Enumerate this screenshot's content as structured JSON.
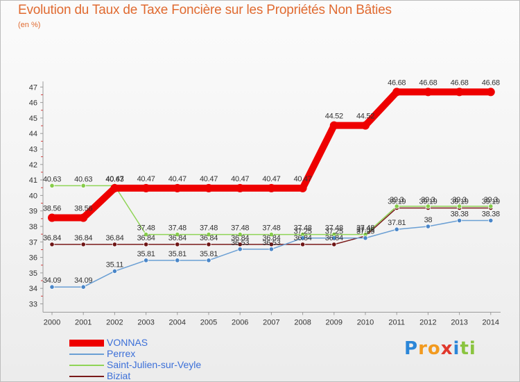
{
  "title": "Evolution du Taux de Taxe Foncière sur les Propriétés Non Bâties",
  "unit": "(en %)",
  "logo": {
    "letters": [
      "P",
      "r",
      "o",
      "x",
      "i",
      "t",
      "i"
    ],
    "colors": [
      "#2b86d8",
      "#f29a1f",
      "#f29a1f",
      "#e0382c",
      "#2b86d8",
      "#8ac43f",
      "#8ac43f"
    ]
  },
  "chart_data": {
    "type": "line",
    "title": "Evolution du Taux de Taxe Foncière sur les Propriétés Non Bâties",
    "ylabel": "(en %)",
    "xlabel": "",
    "x": [
      "2000",
      "2001",
      "2002",
      "2003",
      "2004",
      "2005",
      "2006",
      "2007",
      "2008",
      "2009",
      "2010",
      "2011",
      "2012",
      "2013",
      "2014"
    ],
    "ylim": [
      33,
      47
    ],
    "yticks": [
      "33",
      "34",
      "35",
      "36",
      "37",
      "38",
      "39",
      "40",
      "41",
      "42",
      "43",
      "44",
      "45",
      "46",
      "47"
    ],
    "grid": false,
    "legend": "bottom-left",
    "series": [
      {
        "name": "VONNAS",
        "color": "#ee0000",
        "emphasis": true,
        "values": [
          38.56,
          38.56,
          40.47,
          40.47,
          40.47,
          40.47,
          40.47,
          40.47,
          40.47,
          44.52,
          44.52,
          46.68,
          46.68,
          46.68,
          46.68
        ],
        "labels": [
          "38.56",
          "38.56",
          "40.47",
          "40.47",
          "40.47",
          "40.47",
          "40.47",
          "40.47",
          "40.47",
          "44.52",
          "44.52",
          "46.68",
          "46.68",
          "46.68",
          "46.68"
        ]
      },
      {
        "name": "Perrex",
        "color": "#6a9fd4",
        "marker": "#4a86c8",
        "values": [
          34.09,
          34.09,
          35.11,
          35.81,
          35.81,
          35.81,
          36.53,
          36.53,
          37.25,
          37.25,
          37.25,
          37.81,
          38.0,
          38.38,
          38.38
        ],
        "labels": [
          "34.09",
          "34.09",
          "35.11",
          "35.81",
          "35.81",
          "35.81",
          "36.53",
          "36.53",
          "37.25",
          "37.25",
          "37.25",
          "37.81",
          "38",
          "38.38",
          "38.38"
        ]
      },
      {
        "name": "Saint-Julien-sur-Veyle",
        "color": "#8fd456",
        "marker": "#86cc4a",
        "values": [
          40.63,
          40.63,
          40.63,
          37.48,
          37.48,
          37.48,
          37.48,
          37.48,
          37.48,
          37.48,
          37.48,
          39.3,
          39.3,
          39.3,
          39.3
        ],
        "labels": [
          "40.63",
          "40.63",
          "40.63",
          "37.48",
          "37.48",
          "37.48",
          "37.48",
          "37.48",
          "37.48",
          "37.48",
          "37.48",
          "39.3",
          "39.3",
          "39.3",
          "39.3"
        ]
      },
      {
        "name": "Biziat",
        "color": "#7a1a1a",
        "marker": "#6e1515",
        "values": [
          36.84,
          36.84,
          36.84,
          36.84,
          36.84,
          36.84,
          36.84,
          36.84,
          36.84,
          36.84,
          37.38,
          39.19,
          39.19,
          39.19,
          39.19
        ],
        "labels": [
          "36.84",
          "36.84",
          "36.84",
          "36.84",
          "36.84",
          "36.84",
          "36.84",
          "36.84",
          "36.84",
          "36.84",
          "37.38",
          "39.19",
          "39.19",
          "39.19",
          "39.19"
        ]
      }
    ]
  }
}
